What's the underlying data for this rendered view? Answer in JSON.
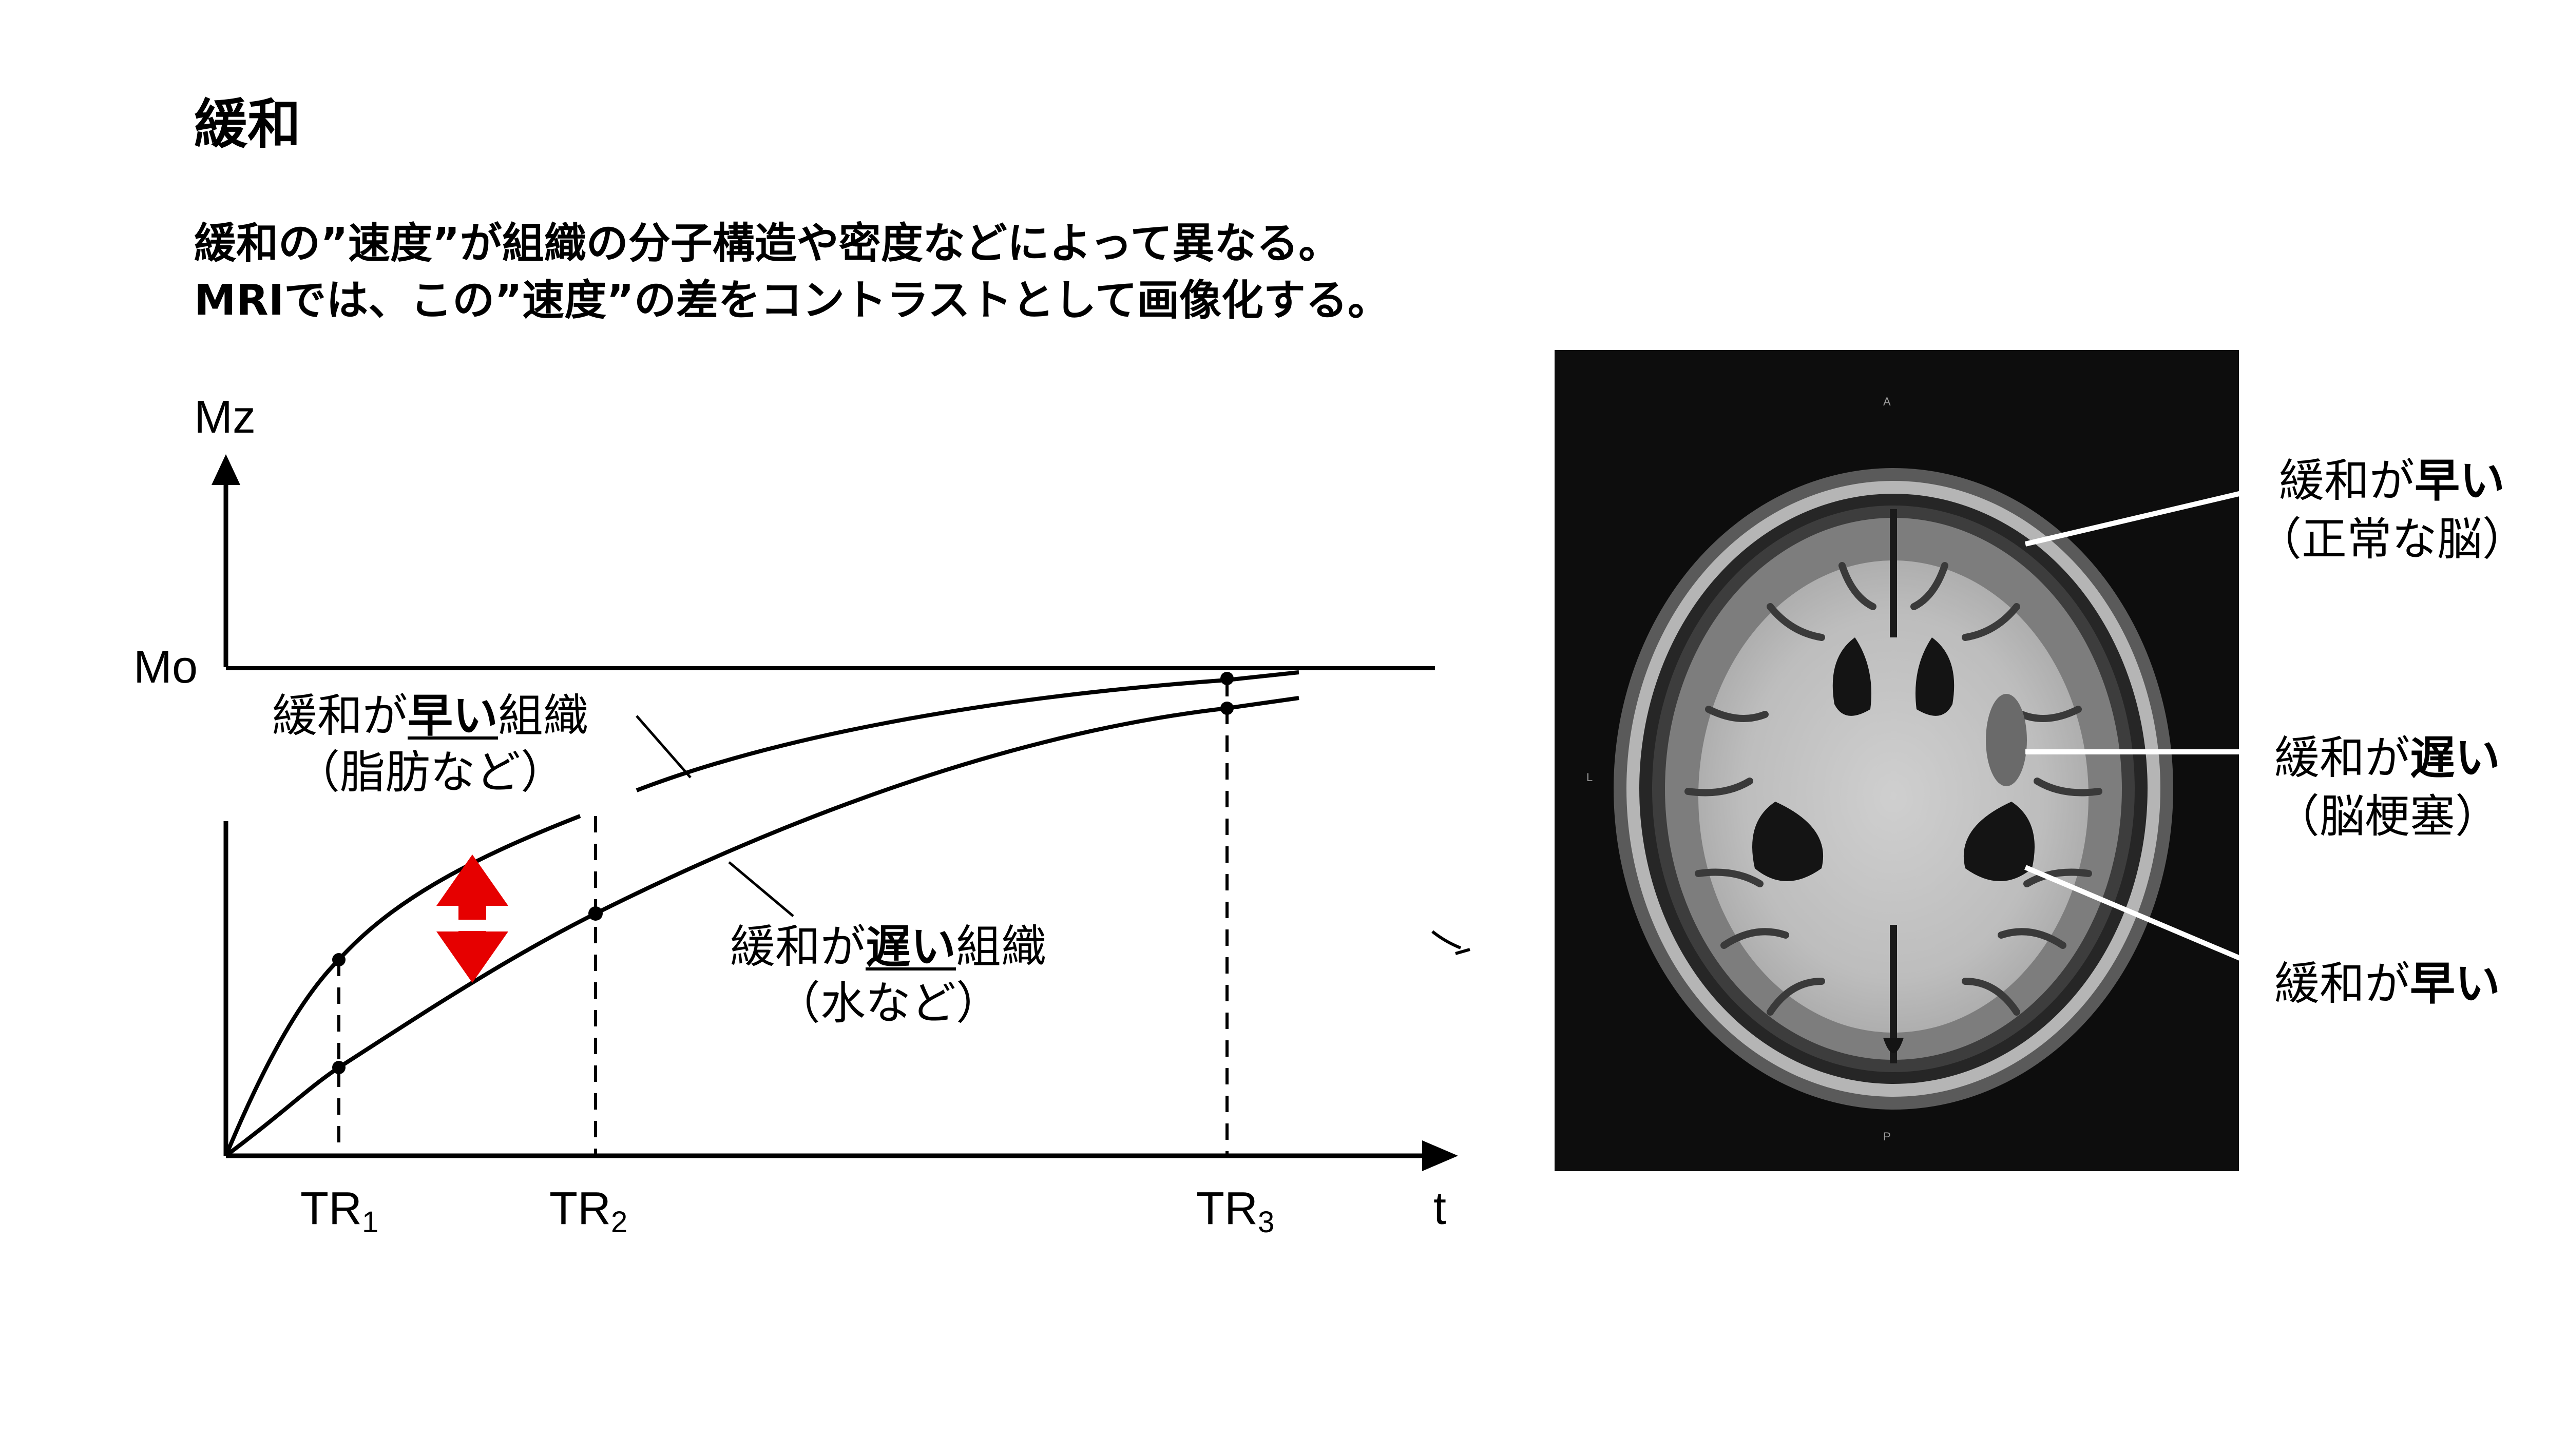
{
  "title": "緩和",
  "subtitle": {
    "line1": "緩和の”速度”が組織の分子構造や密度などによって異なる。",
    "line2": "MRIでは、この”速度”の差をコントラストとして画像化する。"
  },
  "graph": {
    "y_axis_label": "Mz",
    "y_axis_sub": "",
    "m0_label": "Mo",
    "x_axis_label": "t",
    "tr_labels": [
      {
        "main": "TR",
        "sub": "1"
      },
      {
        "main": "TR",
        "sub": "2"
      },
      {
        "main": "TR",
        "sub": "3"
      }
    ],
    "fast_curve_label": {
      "pre": "緩和が",
      "bold": "早い",
      "post": "組織",
      "note": "（脂肪など）"
    },
    "slow_curve_label": {
      "pre": "緩和が",
      "bold": "遅い",
      "post": "組織",
      "note": "（水など）"
    },
    "arrow_color": "#e60000",
    "curve_color": "#000000"
  },
  "brain": {
    "markers": {
      "top": "A",
      "bottom": "P",
      "left": "L"
    },
    "labels": [
      {
        "pre": "緩和が",
        "bold": "早い",
        "note": "（正常な脳）"
      },
      {
        "pre": "緩和が",
        "bold": "遅い",
        "note": "（脳梗塞）"
      },
      {
        "pre": "緩和が",
        "bold": "早い",
        "note": ""
      }
    ]
  }
}
